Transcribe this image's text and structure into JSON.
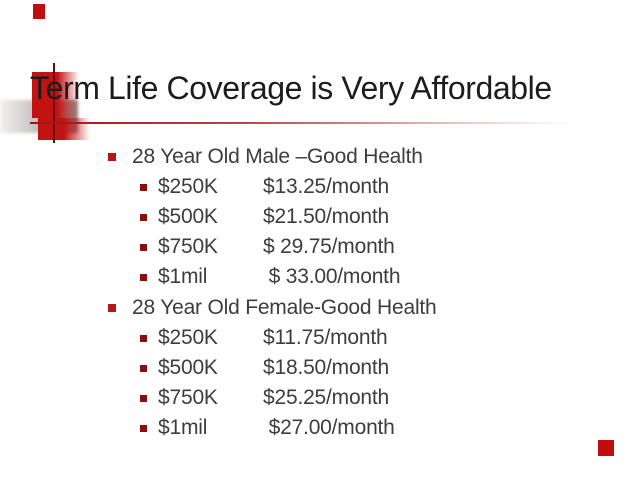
{
  "slide": {
    "title": "Term Life Coverage is Very Affordable",
    "sections": [
      {
        "heading": "28 Year Old Male –Good Health",
        "rates": [
          {
            "amount": "$250K",
            "price": "$13.25/month"
          },
          {
            "amount": "$500K",
            "price": "$21.50/month"
          },
          {
            "amount": "$750K",
            "price": "$ 29.75/month"
          },
          {
            "amount": "$1mil",
            "price": " $ 33.00/month"
          }
        ]
      },
      {
        "heading": "28 Year Old Female-Good Health",
        "rates": [
          {
            "amount": "$250K",
            "price": "$11.75/month"
          },
          {
            "amount": "$500K",
            "price": "$18.50/month"
          },
          {
            "amount": "$750K",
            "price": "$25.25/month"
          },
          {
            "amount": "$1mil",
            "price": " $27.00/month"
          }
        ]
      }
    ],
    "colors": {
      "accent_red": "#c00d0d",
      "level1_bullet": "#b51717",
      "level2_bullet": "#8c0d0d",
      "title_text": "#1c1c1c",
      "body_text": "#3d3d3d"
    }
  }
}
